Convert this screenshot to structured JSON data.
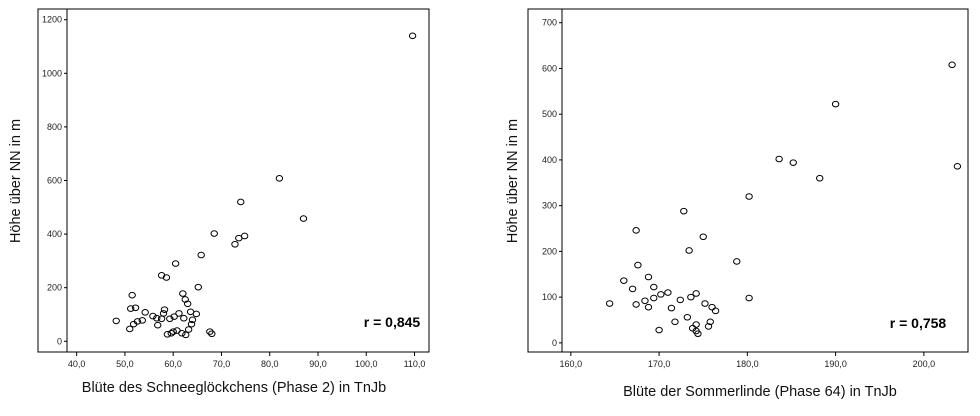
{
  "chart_data": [
    {
      "type": "scatter",
      "xlabel": "Blüte des Schneeglöckchens (Phase 2) in TnJb",
      "ylabel": "Höhe über NN in m",
      "annotation": "r = 0,845",
      "xlim": [
        38,
        113
      ],
      "ylim": [
        -40,
        1240
      ],
      "x_ticks": [
        {
          "value": 40,
          "label": "40,0"
        },
        {
          "value": 50,
          "label": "50,0"
        },
        {
          "value": 60,
          "label": "60,0"
        },
        {
          "value": 70,
          "label": "70,0"
        },
        {
          "value": 80,
          "label": "80,0"
        },
        {
          "value": 90,
          "label": "90,0"
        },
        {
          "value": 100,
          "label": "100,0"
        },
        {
          "value": 110,
          "label": "110,0"
        }
      ],
      "y_ticks": [
        {
          "value": 0,
          "label": "0"
        },
        {
          "value": 200,
          "label": "200"
        },
        {
          "value": 400,
          "label": "400"
        },
        {
          "value": 600,
          "label": "600"
        },
        {
          "value": 800,
          "label": "800"
        },
        {
          "value": 1000,
          "label": "1000"
        },
        {
          "value": 1200,
          "label": "1200"
        }
      ],
      "points": [
        {
          "x": 109.6,
          "y": 1140
        },
        {
          "x": 82.0,
          "y": 608
        },
        {
          "x": 87.0,
          "y": 458
        },
        {
          "x": 74.0,
          "y": 520
        },
        {
          "x": 68.5,
          "y": 402
        },
        {
          "x": 74.8,
          "y": 393
        },
        {
          "x": 73.6,
          "y": 385
        },
        {
          "x": 72.8,
          "y": 362
        },
        {
          "x": 65.8,
          "y": 322
        },
        {
          "x": 60.5,
          "y": 290
        },
        {
          "x": 57.6,
          "y": 246
        },
        {
          "x": 58.6,
          "y": 238
        },
        {
          "x": 65.2,
          "y": 202
        },
        {
          "x": 62.0,
          "y": 178
        },
        {
          "x": 62.5,
          "y": 156
        },
        {
          "x": 51.5,
          "y": 172
        },
        {
          "x": 63.0,
          "y": 140
        },
        {
          "x": 51.2,
          "y": 122
        },
        {
          "x": 52.2,
          "y": 125
        },
        {
          "x": 54.2,
          "y": 108
        },
        {
          "x": 58.2,
          "y": 118
        },
        {
          "x": 58.0,
          "y": 104
        },
        {
          "x": 61.2,
          "y": 104
        },
        {
          "x": 63.6,
          "y": 110
        },
        {
          "x": 64.8,
          "y": 102
        },
        {
          "x": 55.8,
          "y": 94
        },
        {
          "x": 56.6,
          "y": 86
        },
        {
          "x": 57.6,
          "y": 84
        },
        {
          "x": 59.3,
          "y": 84
        },
        {
          "x": 60.2,
          "y": 92
        },
        {
          "x": 62.2,
          "y": 86
        },
        {
          "x": 64.0,
          "y": 80
        },
        {
          "x": 53.6,
          "y": 78
        },
        {
          "x": 52.6,
          "y": 74
        },
        {
          "x": 51.8,
          "y": 64
        },
        {
          "x": 48.2,
          "y": 76
        },
        {
          "x": 51.0,
          "y": 46
        },
        {
          "x": 63.8,
          "y": 64
        },
        {
          "x": 56.8,
          "y": 60
        },
        {
          "x": 63.2,
          "y": 44
        },
        {
          "x": 60.8,
          "y": 40
        },
        {
          "x": 60.0,
          "y": 36
        },
        {
          "x": 59.6,
          "y": 30
        },
        {
          "x": 58.8,
          "y": 26
        },
        {
          "x": 61.8,
          "y": 30
        },
        {
          "x": 62.6,
          "y": 24
        },
        {
          "x": 67.6,
          "y": 36
        },
        {
          "x": 68.0,
          "y": 28
        }
      ]
    },
    {
      "type": "scatter",
      "xlabel": "Blüte der Sommerlinde (Phase 64) in TnJb",
      "ylabel": "Höhe über NN in m",
      "annotation": "r = 0,758",
      "xlim": [
        159,
        205
      ],
      "ylim": [
        -20,
        730
      ],
      "x_ticks": [
        {
          "value": 160,
          "label": "160,0"
        },
        {
          "value": 170,
          "label": "170,0"
        },
        {
          "value": 180,
          "label": "180,0"
        },
        {
          "value": 190,
          "label": "190,0"
        },
        {
          "value": 200,
          "label": "200,0"
        }
      ],
      "y_ticks": [
        {
          "value": 0,
          "label": "0"
        },
        {
          "value": 100,
          "label": "100"
        },
        {
          "value": 200,
          "label": "200"
        },
        {
          "value": 300,
          "label": "300"
        },
        {
          "value": 400,
          "label": "400"
        },
        {
          "value": 500,
          "label": "500"
        },
        {
          "value": 600,
          "label": "600"
        },
        {
          "value": 700,
          "label": "700"
        }
      ],
      "points": [
        {
          "x": 203.2,
          "y": 608
        },
        {
          "x": 190.0,
          "y": 522
        },
        {
          "x": 203.8,
          "y": 386
        },
        {
          "x": 183.6,
          "y": 402
        },
        {
          "x": 185.2,
          "y": 394
        },
        {
          "x": 188.2,
          "y": 360
        },
        {
          "x": 180.2,
          "y": 320
        },
        {
          "x": 172.8,
          "y": 288
        },
        {
          "x": 167.4,
          "y": 246
        },
        {
          "x": 175.0,
          "y": 232
        },
        {
          "x": 173.4,
          "y": 202
        },
        {
          "x": 178.8,
          "y": 178
        },
        {
          "x": 167.6,
          "y": 170
        },
        {
          "x": 166.0,
          "y": 136
        },
        {
          "x": 168.8,
          "y": 144
        },
        {
          "x": 169.4,
          "y": 122
        },
        {
          "x": 167.0,
          "y": 118
        },
        {
          "x": 171.0,
          "y": 110
        },
        {
          "x": 170.2,
          "y": 106
        },
        {
          "x": 174.2,
          "y": 108
        },
        {
          "x": 173.6,
          "y": 100
        },
        {
          "x": 172.4,
          "y": 94
        },
        {
          "x": 169.4,
          "y": 98
        },
        {
          "x": 168.4,
          "y": 92
        },
        {
          "x": 164.4,
          "y": 86
        },
        {
          "x": 167.4,
          "y": 84
        },
        {
          "x": 168.8,
          "y": 78
        },
        {
          "x": 171.4,
          "y": 76
        },
        {
          "x": 175.2,
          "y": 86
        },
        {
          "x": 176.0,
          "y": 78
        },
        {
          "x": 176.4,
          "y": 70
        },
        {
          "x": 180.2,
          "y": 98
        },
        {
          "x": 171.8,
          "y": 46
        },
        {
          "x": 170.0,
          "y": 28
        },
        {
          "x": 174.2,
          "y": 40
        },
        {
          "x": 173.8,
          "y": 32
        },
        {
          "x": 174.2,
          "y": 26
        },
        {
          "x": 175.6,
          "y": 36
        },
        {
          "x": 173.2,
          "y": 56
        },
        {
          "x": 174.4,
          "y": 20
        },
        {
          "x": 175.8,
          "y": 46
        }
      ]
    }
  ]
}
